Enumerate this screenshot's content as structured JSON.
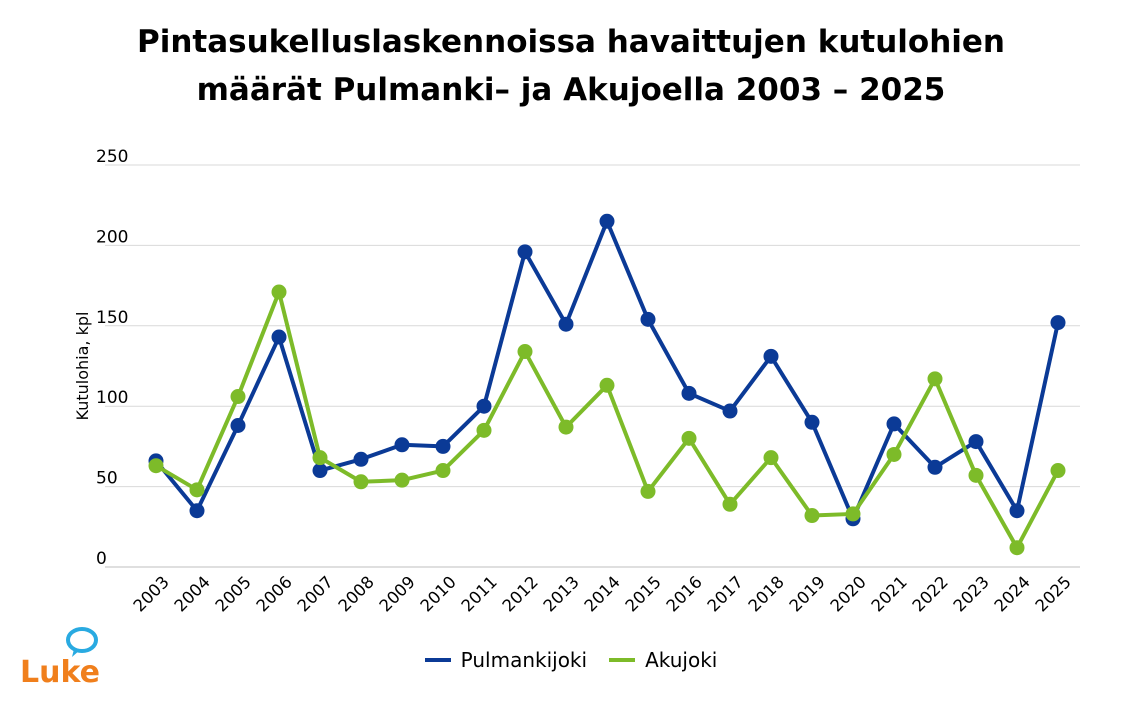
{
  "chart_data": {
    "type": "line",
    "title_lines": [
      "Pintasukelluslaskennoissa havaittujen kutulohien",
      "määrät Pulmanki– ja Akujoella 2003 – 2025"
    ],
    "ylabel": "Kutulohia, kpl",
    "xlabel": "",
    "ylim": [
      0,
      250
    ],
    "yticks": [
      0,
      50,
      100,
      150,
      200,
      250
    ],
    "grid": true,
    "legend_position": "bottom",
    "categories": [
      "2003",
      "2004",
      "2005",
      "2006",
      "2007",
      "2008",
      "2009",
      "2010",
      "2011",
      "2012",
      "2013",
      "2014",
      "2015",
      "2016",
      "2017",
      "2018",
      "2019",
      "2020",
      "2021",
      "2022",
      "2023",
      "2024",
      "2025"
    ],
    "series": [
      {
        "name": "Pulmankijoki",
        "color": "#0b3a96",
        "values": [
          66,
          35,
          88,
          143,
          60,
          67,
          76,
          75,
          100,
          196,
          151,
          215,
          154,
          108,
          97,
          131,
          90,
          30,
          89,
          62,
          78,
          35,
          152
        ]
      },
      {
        "name": "Akujoki",
        "color": "#7dbb29",
        "values": [
          63,
          48,
          106,
          171,
          68,
          53,
          54,
          60,
          85,
          134,
          87,
          113,
          47,
          80,
          39,
          68,
          32,
          33,
          70,
          117,
          57,
          12,
          60
        ]
      }
    ]
  },
  "logo": {
    "text": "Luke",
    "color": "#f07f1c",
    "accent": "#29aae1"
  }
}
